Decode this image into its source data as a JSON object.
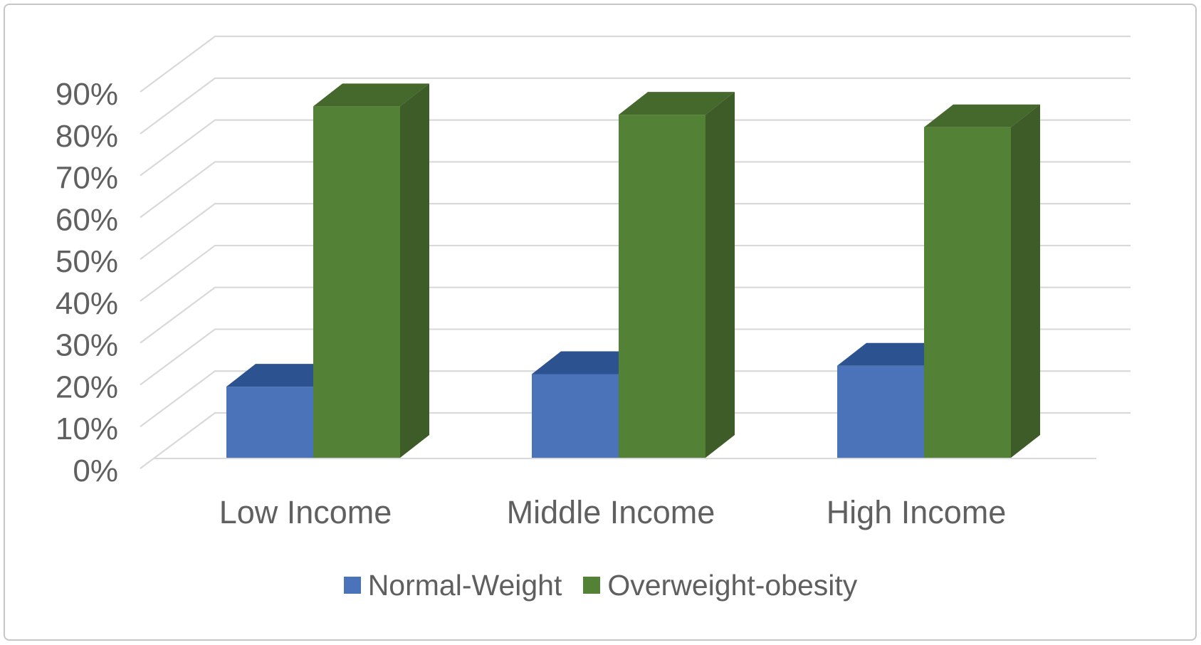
{
  "chart_data": {
    "type": "bar",
    "projection": "3d-oblique-clustered-column",
    "title": "",
    "xlabel": "",
    "ylabel": "",
    "categories": [
      "Low Income",
      "Middle Income",
      "High Income"
    ],
    "series": [
      {
        "name": "Normal-Weight",
        "values": [
          17,
          20,
          22
        ]
      },
      {
        "name": "Overweight-obesity",
        "values": [
          84,
          82,
          79
        ]
      }
    ],
    "value_unit": "%",
    "ylim": [
      0,
      90
    ],
    "y_ticks": [
      0,
      10,
      20,
      30,
      40,
      50,
      60,
      70,
      80,
      90
    ],
    "y_tick_labels": [
      "0%",
      "10%",
      "20%",
      "30%",
      "40%",
      "50%",
      "60%",
      "70%",
      "80%",
      "90%"
    ],
    "grid": true,
    "legend_position": "bottom"
  },
  "colors": {
    "series": [
      {
        "front": "#4A73B9",
        "top": "#2D5290",
        "side": "#3E63A4"
      },
      {
        "front": "#538135",
        "top": "#45682D",
        "side": "#3D5C27"
      }
    ],
    "gridline": "#D9D9D9",
    "floor_line": "#D9D9D9",
    "text": "#606060",
    "frame_border": "#C6C6C6",
    "background": "#FFFFFF"
  }
}
